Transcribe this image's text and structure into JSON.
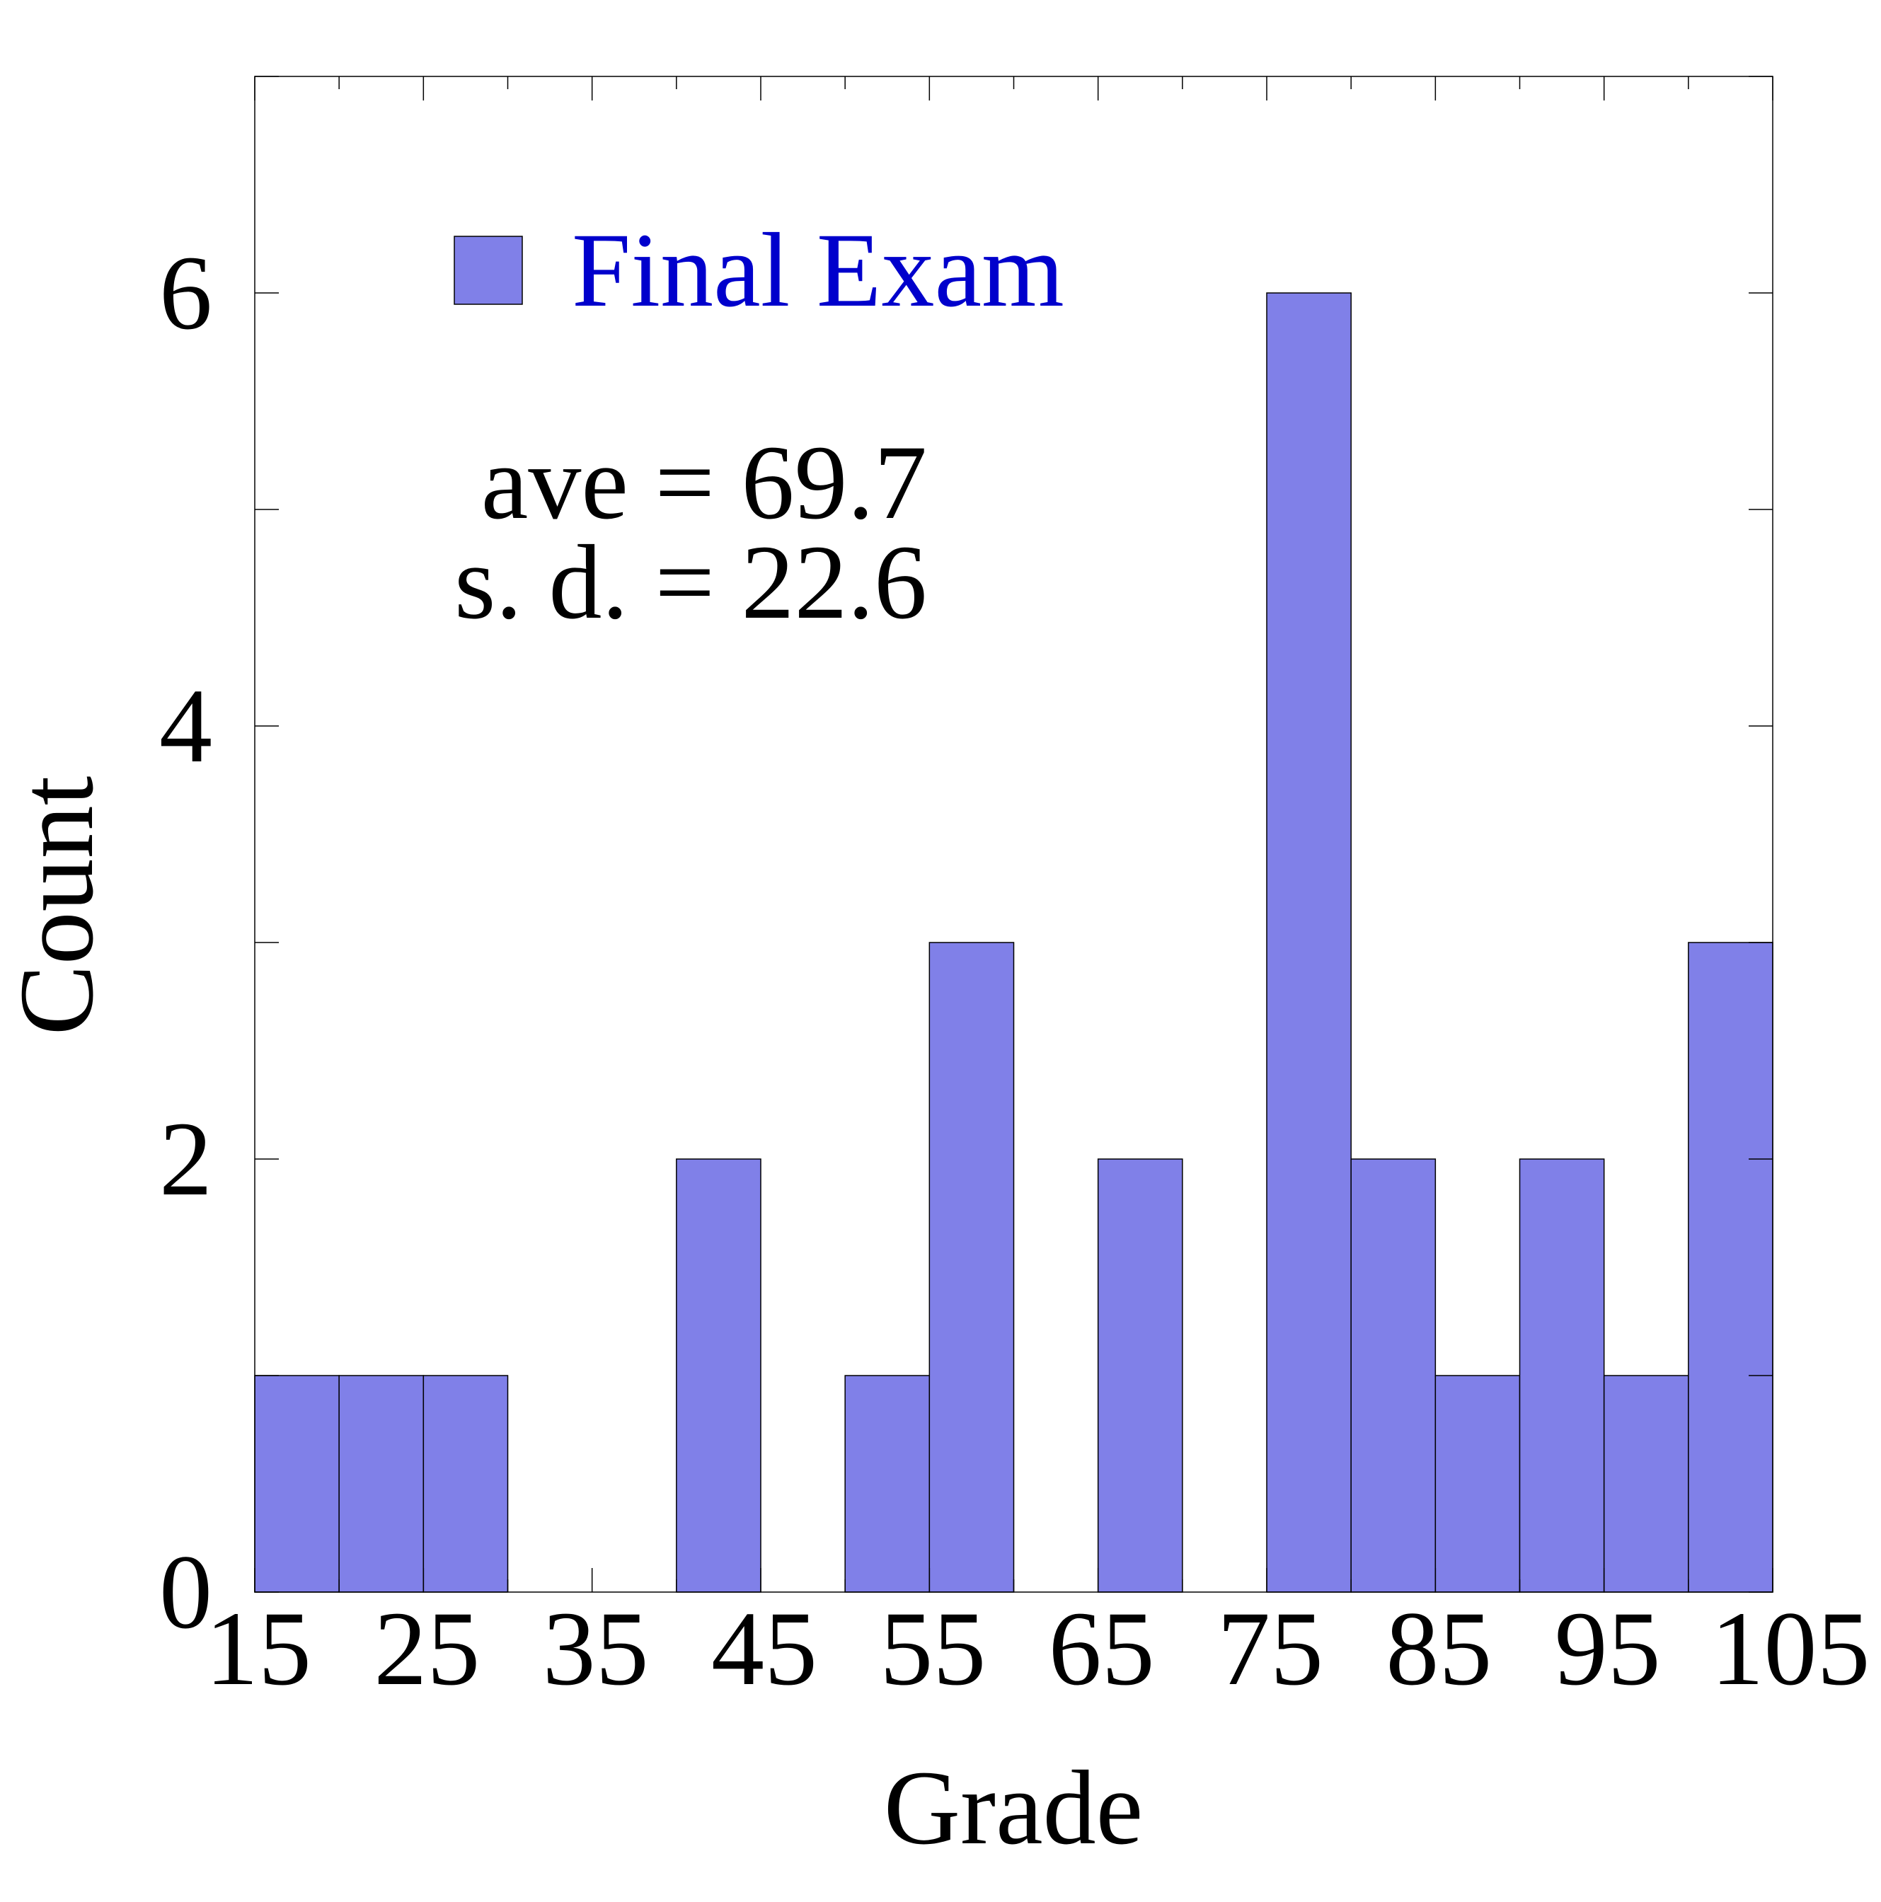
{
  "chart_data": {
    "type": "bar",
    "xlabel": "Grade",
    "ylabel": "Count",
    "bin_edges": [
      15,
      20,
      25,
      30,
      35,
      40,
      45,
      50,
      55,
      60,
      65,
      70,
      75,
      80,
      85,
      90,
      95,
      100,
      105
    ],
    "values": [
      1,
      1,
      1,
      0,
      0,
      2,
      0,
      1,
      3,
      0,
      2,
      0,
      6,
      2,
      1,
      2,
      1,
      3
    ],
    "xlim": [
      15,
      105
    ],
    "ylim": [
      0,
      7
    ],
    "x_ticks": [
      "15",
      "25",
      "35",
      "45",
      "55",
      "65",
      "75",
      "85",
      "95",
      "105"
    ],
    "y_ticks": [
      "0",
      "2",
      "4",
      "6"
    ],
    "grid": false,
    "legend": {
      "position": "top-left",
      "entries": [
        {
          "label": "Final Exam",
          "color": "#8080e8"
        }
      ]
    },
    "annotations": [
      "ave = 69.7",
      "s. d. = 22.6"
    ],
    "bar_color": "#8080e8",
    "legend_text_color": "#0000cc"
  }
}
